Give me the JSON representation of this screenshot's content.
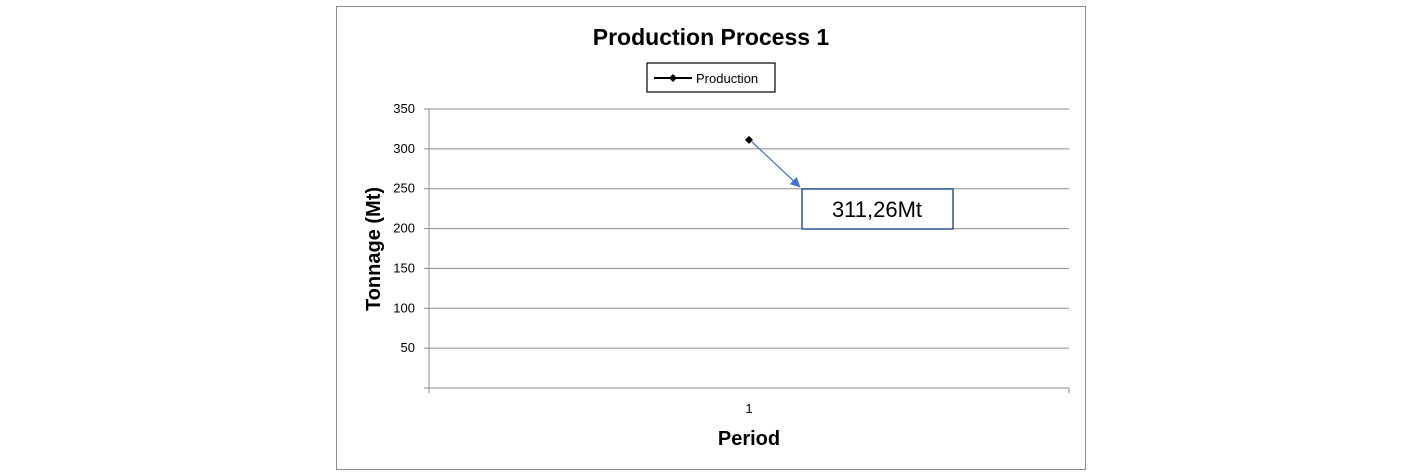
{
  "chart_data": {
    "type": "line",
    "title": "Production Process 1",
    "xlabel": "Period",
    "ylabel": "Tonnage (Mt)",
    "categories": [
      "1"
    ],
    "series": [
      {
        "name": "Production",
        "values": [
          311.26
        ],
        "color": "#000000",
        "marker": "diamond"
      }
    ],
    "ylim": [
      0,
      350
    ],
    "yticks": [
      50,
      100,
      150,
      200,
      250,
      300,
      350
    ],
    "grid": true,
    "legend": "top-center",
    "annotation": {
      "text": "311,26Mt",
      "border_color": "#2f5597",
      "arrow_color": "#4472c4"
    }
  }
}
